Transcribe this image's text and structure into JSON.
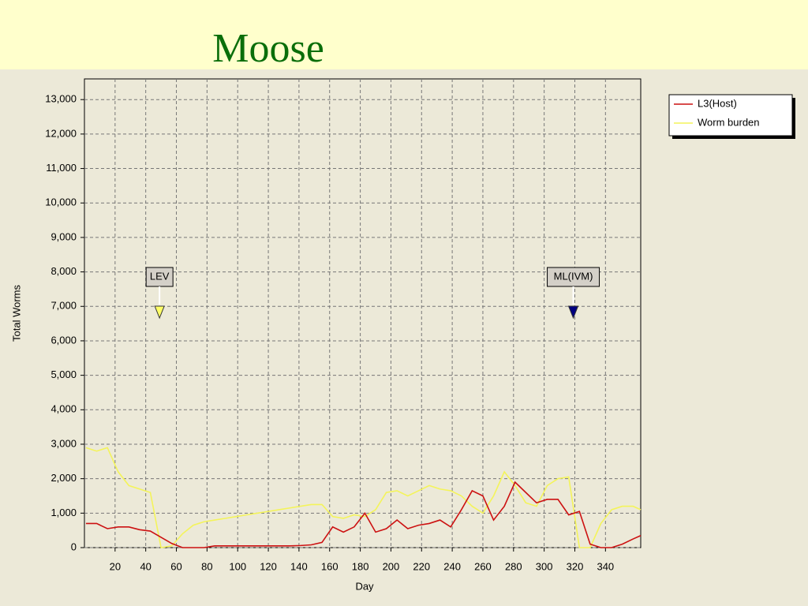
{
  "chart_data": {
    "type": "line",
    "title": "Moose",
    "x_label": "Day",
    "y_label": "Total Worms",
    "x": [
      1,
      8,
      15,
      22,
      29,
      36,
      43,
      50,
      57,
      64,
      71,
      78,
      85,
      92,
      99,
      106,
      113,
      120,
      127,
      134,
      141,
      148,
      155,
      162,
      169,
      176,
      183,
      190,
      197,
      204,
      211,
      218,
      225,
      232,
      239,
      246,
      253,
      260,
      267,
      274,
      281,
      288,
      295,
      302,
      309,
      316,
      323,
      330,
      337,
      344,
      351,
      358,
      363
    ],
    "series": [
      {
        "name": "L3(Host)",
        "color": "#cc1111",
        "values": [
          700,
          700,
          550,
          600,
          600,
          520,
          480,
          300,
          120,
          0,
          0,
          0,
          50,
          50,
          50,
          50,
          50,
          50,
          50,
          50,
          60,
          80,
          150,
          600,
          450,
          600,
          1000,
          450,
          550,
          800,
          550,
          650,
          700,
          800,
          600,
          1100,
          1650,
          1500,
          800,
          1200,
          1900,
          1600,
          1300,
          1400,
          1400,
          950,
          1050,
          100,
          0,
          0,
          100,
          250,
          350
        ]
      },
      {
        "name": "Worm burden",
        "color": "#f4f45a",
        "values": [
          2900,
          2800,
          2900,
          2200,
          1800,
          1700,
          1600,
          0,
          50,
          400,
          650,
          750,
          800,
          850,
          900,
          950,
          1000,
          1050,
          1100,
          1150,
          1200,
          1250,
          1250,
          900,
          850,
          950,
          900,
          1100,
          1600,
          1650,
          1500,
          1650,
          1800,
          1700,
          1650,
          1500,
          1200,
          1000,
          1500,
          2200,
          1800,
          1300,
          1200,
          1800,
          2000,
          2050,
          0,
          0,
          700,
          1100,
          1200,
          1200,
          1100
        ]
      }
    ],
    "annotations": [
      {
        "label": "LEV",
        "x": 49,
        "color": "#ffff66"
      },
      {
        "label": "ML(IVM)",
        "x": 319,
        "color": "#000080"
      }
    ],
    "xlim": [
      0,
      363
    ],
    "ylim": [
      0,
      13600
    ],
    "xticks": [
      20,
      40,
      60,
      80,
      100,
      120,
      140,
      160,
      180,
      200,
      220,
      240,
      260,
      280,
      300,
      320,
      340
    ],
    "yticks": [
      0,
      {
        "value": 1000,
        "label": "1,000"
      },
      {
        "value": 2000,
        "label": "2,000"
      },
      {
        "value": 3000,
        "label": "3,000"
      },
      {
        "value": 4000,
        "label": "4,000"
      },
      {
        "value": 5000,
        "label": "5,000"
      },
      {
        "value": 6000,
        "label": "6,000"
      },
      {
        "value": 7000,
        "label": "7,000"
      },
      {
        "value": 8000,
        "label": "8,000"
      },
      {
        "value": 9000,
        "label": "9,000"
      },
      {
        "value": 10000,
        "label": "10,000"
      },
      {
        "value": 11000,
        "label": "11,000"
      },
      {
        "value": 12000,
        "label": "12,000"
      },
      {
        "value": 13000,
        "label": "13,000"
      }
    ],
    "grid": true,
    "legend": "top-right"
  }
}
